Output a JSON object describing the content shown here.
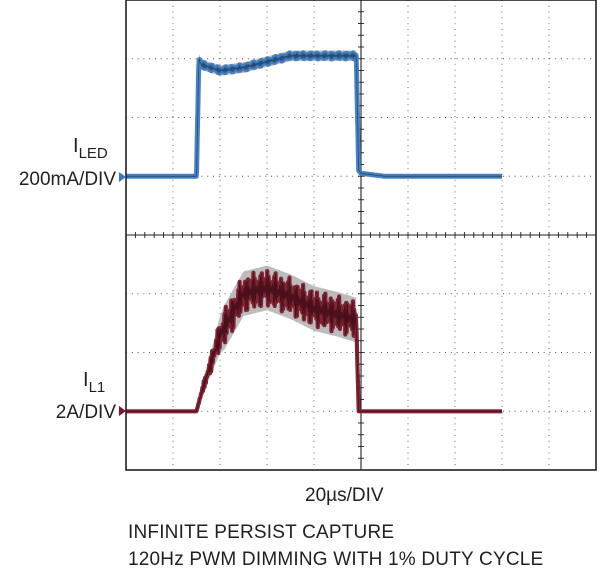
{
  "chart_data": {
    "type": "line",
    "time_scale": "20µs/DIV",
    "x_divisions": 10,
    "y_divisions": 8,
    "x_range_div": [
      0,
      10
    ],
    "y_range_div": [
      0,
      8
    ],
    "grid": true,
    "captions": [
      "INFINITE PERSIST CAPTURE",
      "120Hz PWM DIMMING WITH 1% DUTY CYCLE"
    ],
    "series": [
      {
        "name": "ILED",
        "label_main": "I",
        "label_sub": "LED",
        "scale": "200mA/DIV",
        "color": "#3a78bd",
        "ground_div": 5.0,
        "x_div": [
          0,
          1.5,
          1.55,
          1.6,
          2.0,
          2.5,
          3.0,
          3.5,
          4.0,
          4.5,
          4.9,
          4.95,
          5.0,
          5.5,
          6.0,
          7.0,
          8.0
        ],
        "y_div": [
          5.0,
          5.0,
          7.0,
          6.9,
          6.8,
          6.85,
          6.95,
          7.05,
          7.05,
          7.05,
          7.05,
          5.1,
          5.05,
          5.0,
          5.0,
          5.0,
          5.0
        ]
      },
      {
        "name": "IL1",
        "label_main": "I",
        "label_sub": "L1",
        "scale": "2A/DIV",
        "color": "#7a1728",
        "ground_div": 1.0,
        "x_div": [
          0,
          1.5,
          1.6,
          2.0,
          2.5,
          3.0,
          3.5,
          4.0,
          4.5,
          4.9,
          4.95,
          5.0,
          6.0,
          7.0,
          8.0
        ],
        "y_div": [
          1.0,
          1.0,
          1.3,
          2.3,
          3.0,
          3.1,
          2.95,
          2.75,
          2.65,
          2.55,
          1.0,
          1.0,
          1.0,
          1.0,
          1.0
        ]
      }
    ]
  }
}
